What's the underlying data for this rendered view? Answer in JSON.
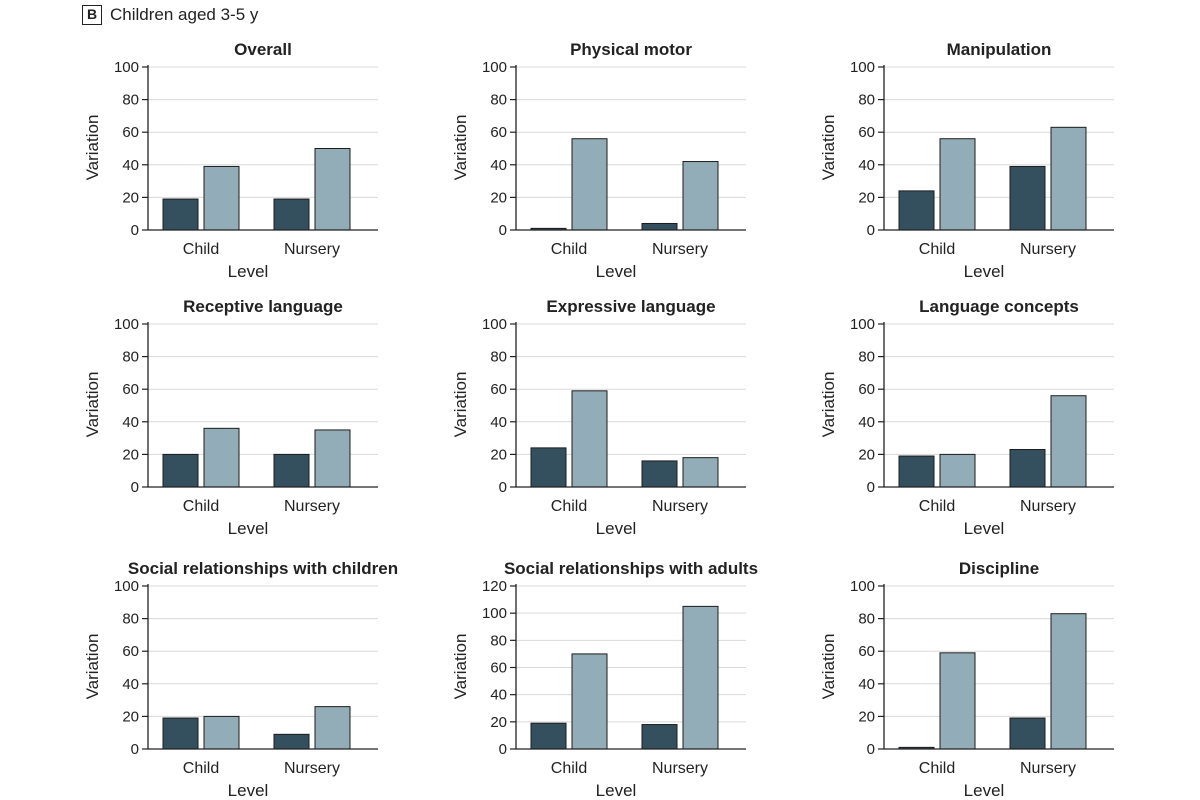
{
  "panel": {
    "letter": "B",
    "caption": "Children aged 3-5 y"
  },
  "colors": {
    "dark_bar": "#34505e",
    "light_bar": "#93adb8",
    "gridline": "#d9d9d9",
    "axis": "#222222"
  },
  "chart_data": [
    {
      "type": "bar",
      "title": "Overall",
      "categories": [
        "Child",
        "Nursery"
      ],
      "series": [
        {
          "values": [
            19,
            19
          ]
        },
        {
          "values": [
            39,
            50
          ]
        }
      ],
      "xlabel": "Level",
      "ylabel": "Variation",
      "ylim": [
        0,
        100
      ],
      "yticks": [
        0,
        20,
        40,
        60,
        80,
        100
      ],
      "grid": true
    },
    {
      "type": "bar",
      "title": "Physical motor",
      "categories": [
        "Child",
        "Nursery"
      ],
      "series": [
        {
          "values": [
            1,
            4
          ]
        },
        {
          "values": [
            56,
            42
          ]
        }
      ],
      "xlabel": "Level",
      "ylabel": "Variation",
      "ylim": [
        0,
        100
      ],
      "yticks": [
        0,
        20,
        40,
        60,
        80,
        100
      ],
      "grid": true
    },
    {
      "type": "bar",
      "title": "Manipulation",
      "categories": [
        "Child",
        "Nursery"
      ],
      "series": [
        {
          "values": [
            24,
            39
          ]
        },
        {
          "values": [
            56,
            63
          ]
        }
      ],
      "xlabel": "Level",
      "ylabel": "Variation",
      "ylim": [
        0,
        100
      ],
      "yticks": [
        0,
        20,
        40,
        60,
        80,
        100
      ],
      "grid": true
    },
    {
      "type": "bar",
      "title": "Receptive language",
      "categories": [
        "Child",
        "Nursery"
      ],
      "series": [
        {
          "values": [
            20,
            20
          ]
        },
        {
          "values": [
            36,
            35
          ]
        }
      ],
      "xlabel": "Level",
      "ylabel": "Variation",
      "ylim": [
        0,
        100
      ],
      "yticks": [
        0,
        20,
        40,
        60,
        80,
        100
      ],
      "grid": true
    },
    {
      "type": "bar",
      "title": "Expressive language",
      "categories": [
        "Child",
        "Nursery"
      ],
      "series": [
        {
          "values": [
            24,
            16
          ]
        },
        {
          "values": [
            59,
            18
          ]
        }
      ],
      "xlabel": "Level",
      "ylabel": "Variation",
      "ylim": [
        0,
        100
      ],
      "yticks": [
        0,
        20,
        40,
        60,
        80,
        100
      ],
      "grid": true
    },
    {
      "type": "bar",
      "title": "Language concepts",
      "categories": [
        "Child",
        "Nursery"
      ],
      "series": [
        {
          "values": [
            19,
            23
          ]
        },
        {
          "values": [
            20,
            56
          ]
        }
      ],
      "xlabel": "Level",
      "ylabel": "Variation",
      "ylim": [
        0,
        100
      ],
      "yticks": [
        0,
        20,
        40,
        60,
        80,
        100
      ],
      "grid": true
    },
    {
      "type": "bar",
      "title": "Social relationships with children",
      "categories": [
        "Child",
        "Nursery"
      ],
      "series": [
        {
          "values": [
            19,
            9
          ]
        },
        {
          "values": [
            20,
            26
          ]
        }
      ],
      "xlabel": "Level",
      "ylabel": "Variation",
      "ylim": [
        0,
        100
      ],
      "yticks": [
        0,
        20,
        40,
        60,
        80,
        100
      ],
      "grid": true
    },
    {
      "type": "bar",
      "title": "Social relationships with adults",
      "categories": [
        "Child",
        "Nursery"
      ],
      "series": [
        {
          "values": [
            19,
            18
          ]
        },
        {
          "values": [
            70,
            105
          ]
        }
      ],
      "xlabel": "Level",
      "ylabel": "Variation",
      "ylim": [
        0,
        120
      ],
      "yticks": [
        0,
        20,
        40,
        60,
        80,
        100,
        120
      ],
      "grid": true
    },
    {
      "type": "bar",
      "title": "Discipline",
      "categories": [
        "Child",
        "Nursery"
      ],
      "series": [
        {
          "values": [
            1,
            19
          ]
        },
        {
          "values": [
            59,
            83
          ]
        }
      ],
      "xlabel": "Level",
      "ylabel": "Variation",
      "ylim": [
        0,
        100
      ],
      "yticks": [
        0,
        20,
        40,
        60,
        80,
        100
      ],
      "grid": true
    }
  ]
}
